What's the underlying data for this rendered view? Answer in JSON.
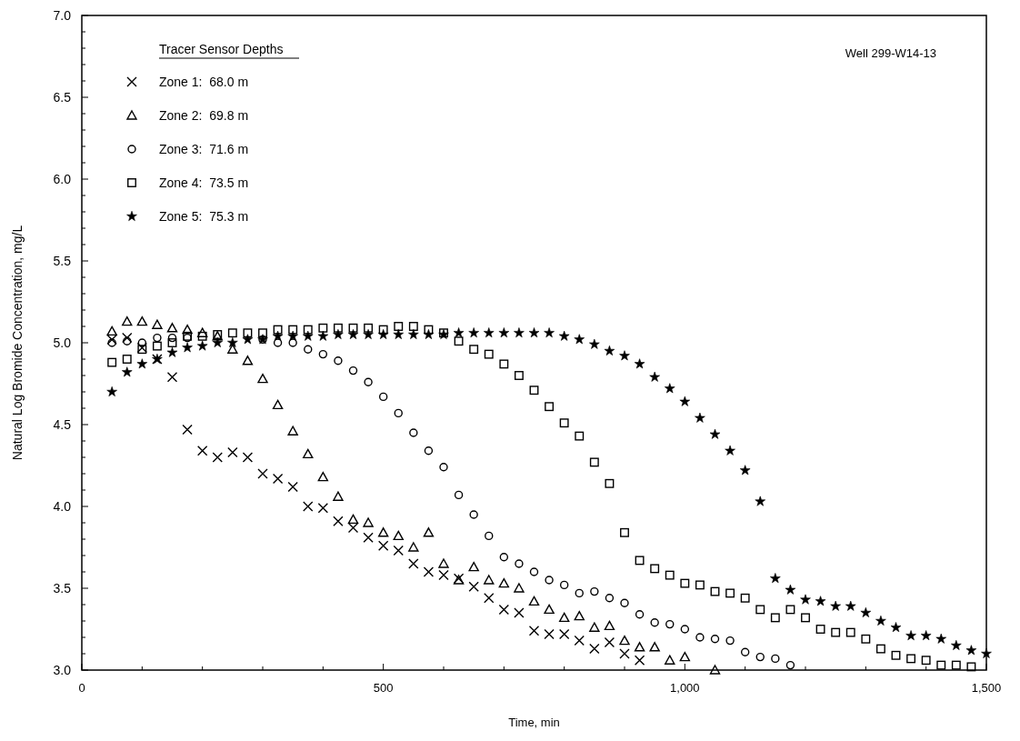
{
  "chart_data": {
    "type": "scatter",
    "xlabel": "Time, min",
    "ylabel": "Natural Log Bromide Concentration, mg/L",
    "legend_title": "Tracer Sensor Depths",
    "annotations": [
      "Well 299-W14-13"
    ],
    "legend": "top left",
    "grid": false,
    "xlim": [
      0,
      1500
    ],
    "ylim": [
      3,
      7
    ],
    "xticks": [
      0,
      {
        "value": 100,
        "label": null
      },
      {
        "value": 200,
        "label": null
      },
      {
        "value": 300,
        "label": null
      },
      {
        "value": 400,
        "label": null
      },
      500,
      {
        "value": 600,
        "label": null
      },
      {
        "value": 700,
        "label": null
      },
      {
        "value": 800,
        "label": null
      },
      {
        "value": 900,
        "label": null
      },
      {
        "value": 1000,
        "label": "1,000"
      },
      {
        "value": 1100,
        "label": null
      },
      {
        "value": 1200,
        "label": null
      },
      {
        "value": 1300,
        "label": null
      },
      {
        "value": 1400,
        "label": null
      },
      {
        "value": 1500,
        "label": "1,500"
      }
    ],
    "yticks": [
      {
        "value": 3,
        "label": "3.0"
      },
      {
        "value": 3.1,
        "label": null
      },
      {
        "value": 3.2,
        "label": null
      },
      {
        "value": 3.3,
        "label": null
      },
      {
        "value": 3.4,
        "label": null
      },
      {
        "value": 3.5,
        "label": "3.5"
      },
      {
        "value": 3.6,
        "label": null
      },
      {
        "value": 3.7,
        "label": null
      },
      {
        "value": 3.8,
        "label": null
      },
      {
        "value": 3.9,
        "label": null
      },
      {
        "value": 4,
        "label": "4.0"
      },
      {
        "value": 4.1,
        "label": null
      },
      {
        "value": 4.2,
        "label": null
      },
      {
        "value": 4.3,
        "label": null
      },
      {
        "value": 4.4,
        "label": null
      },
      {
        "value": 4.5,
        "label": "4.5"
      },
      {
        "value": 4.6,
        "label": null
      },
      {
        "value": 4.7,
        "label": null
      },
      {
        "value": 4.8,
        "label": null
      },
      {
        "value": 4.9,
        "label": null
      },
      {
        "value": 5,
        "label": "5.0"
      },
      {
        "value": 5.1,
        "label": null
      },
      {
        "value": 5.2,
        "label": null
      },
      {
        "value": 5.3,
        "label": null
      },
      {
        "value": 5.4,
        "label": null
      },
      {
        "value": 5.5,
        "label": "5.5"
      },
      {
        "value": 5.6,
        "label": null
      },
      {
        "value": 5.7,
        "label": null
      },
      {
        "value": 5.8,
        "label": null
      },
      {
        "value": 5.9,
        "label": null
      },
      {
        "value": 6,
        "label": "6.0"
      },
      {
        "value": 6.1,
        "label": null
      },
      {
        "value": 6.2,
        "label": null
      },
      {
        "value": 6.3,
        "label": null
      },
      {
        "value": 6.4,
        "label": null
      },
      {
        "value": 6.5,
        "label": "6.5"
      },
      {
        "value": 6.6,
        "label": null
      },
      {
        "value": 6.7,
        "label": null
      },
      {
        "value": 6.8,
        "label": null
      },
      {
        "value": 6.9,
        "label": null
      },
      {
        "value": 7,
        "label": "7.0"
      }
    ],
    "series": [
      {
        "name": "Zone 1:  68.0 m",
        "color": "#000000",
        "marker": "cross",
        "x": [
          50,
          75,
          100,
          125,
          150,
          175,
          200,
          225,
          250,
          275,
          300,
          325,
          350,
          375,
          400,
          425,
          450,
          475,
          500,
          525,
          550,
          575,
          600,
          625,
          650,
          675,
          700,
          725,
          750,
          775,
          800,
          825,
          850,
          875,
          900,
          925
        ],
        "values": [
          5.02,
          5.03,
          4.97,
          4.9,
          4.79,
          4.47,
          4.34,
          4.3,
          4.33,
          4.3,
          4.2,
          4.17,
          4.12,
          4.0,
          3.99,
          3.91,
          3.87,
          3.81,
          3.76,
          3.73,
          3.65,
          3.6,
          3.58,
          3.56,
          3.51,
          3.44,
          3.37,
          3.35,
          3.24,
          3.22,
          3.22,
          3.18,
          3.13,
          3.17,
          3.1,
          3.06
        ]
      },
      {
        "name": "Zone 2:  69.8 m",
        "color": "#000000",
        "marker": "triangle",
        "x": [
          50,
          75,
          100,
          125,
          150,
          175,
          200,
          225,
          250,
          275,
          300,
          325,
          350,
          375,
          400,
          425,
          450,
          475,
          500,
          525,
          550,
          575,
          600,
          625,
          650,
          675,
          700,
          725,
          750,
          775,
          800,
          825,
          850,
          875,
          900,
          925,
          950,
          975,
          1000,
          1050
        ],
        "values": [
          5.07,
          5.13,
          5.13,
          5.11,
          5.09,
          5.08,
          5.06,
          5.04,
          4.96,
          4.89,
          4.78,
          4.62,
          4.46,
          4.32,
          4.18,
          4.06,
          3.92,
          3.9,
          3.84,
          3.82,
          3.75,
          3.84,
          3.65,
          3.55,
          3.63,
          3.55,
          3.53,
          3.5,
          3.42,
          3.37,
          3.32,
          3.33,
          3.26,
          3.27,
          3.18,
          3.14,
          3.14,
          3.06,
          3.08,
          3.0
        ]
      },
      {
        "name": "Zone 3:  71.6 m",
        "color": "#000000",
        "marker": "circle",
        "x": [
          50,
          75,
          100,
          125,
          150,
          175,
          300,
          325,
          350,
          375,
          400,
          425,
          450,
          475,
          500,
          525,
          550,
          575,
          600,
          625,
          650,
          675,
          700,
          725,
          750,
          775,
          800,
          825,
          850,
          875,
          900,
          925,
          950,
          975,
          1000,
          1025,
          1050,
          1075,
          1100,
          1125,
          1150,
          1175
        ],
        "values": [
          5.0,
          5.01,
          5.0,
          5.03,
          5.03,
          5.03,
          5.02,
          5.0,
          5.0,
          4.96,
          4.93,
          4.89,
          4.83,
          4.76,
          4.67,
          4.57,
          4.45,
          4.34,
          4.24,
          4.07,
          3.95,
          3.82,
          3.69,
          3.65,
          3.6,
          3.55,
          3.52,
          3.47,
          3.48,
          3.44,
          3.41,
          3.34,
          3.29,
          3.28,
          3.25,
          3.2,
          3.19,
          3.18,
          3.11,
          3.08,
          3.07,
          3.03
        ]
      },
      {
        "name": "Zone 4:  73.5 m",
        "color": "#000000",
        "marker": "square",
        "x": [
          50,
          75,
          100,
          125,
          150,
          175,
          200,
          225,
          250,
          275,
          300,
          325,
          350,
          375,
          400,
          425,
          450,
          475,
          500,
          525,
          550,
          575,
          600,
          625,
          650,
          675,
          700,
          725,
          750,
          775,
          800,
          825,
          850,
          875,
          900,
          925,
          950,
          975,
          1000,
          1025,
          1050,
          1075,
          1100,
          1125,
          1150,
          1175,
          1200,
          1225,
          1250,
          1275,
          1300,
          1325,
          1350,
          1375,
          1400,
          1425,
          1450,
          1475
        ],
        "values": [
          4.88,
          4.9,
          4.96,
          4.98,
          5.0,
          5.04,
          5.04,
          5.05,
          5.06,
          5.06,
          5.06,
          5.08,
          5.08,
          5.08,
          5.09,
          5.09,
          5.09,
          5.09,
          5.08,
          5.1,
          5.1,
          5.08,
          5.06,
          5.01,
          4.96,
          4.93,
          4.87,
          4.8,
          4.71,
          4.61,
          4.51,
          4.43,
          4.27,
          4.14,
          3.84,
          3.67,
          3.62,
          3.58,
          3.53,
          3.52,
          3.48,
          3.47,
          3.44,
          3.37,
          3.32,
          3.37,
          3.32,
          3.25,
          3.23,
          3.23,
          3.19,
          3.13,
          3.09,
          3.07,
          3.06,
          3.03,
          3.03,
          3.02
        ]
      },
      {
        "name": "Zone 5:  75.3 m",
        "color": "#000000",
        "marker": "star",
        "x": [
          50,
          75,
          100,
          125,
          150,
          175,
          200,
          225,
          250,
          275,
          300,
          325,
          350,
          375,
          400,
          425,
          450,
          475,
          500,
          525,
          550,
          575,
          600,
          625,
          650,
          675,
          700,
          725,
          750,
          775,
          800,
          825,
          850,
          875,
          900,
          925,
          950,
          975,
          1000,
          1025,
          1050,
          1075,
          1100,
          1125,
          1150,
          1175,
          1200,
          1225,
          1250,
          1275,
          1300,
          1325,
          1350,
          1375,
          1400,
          1425,
          1450,
          1475,
          1500
        ],
        "values": [
          4.7,
          4.82,
          4.87,
          4.9,
          4.94,
          4.97,
          4.98,
          5.0,
          5.0,
          5.02,
          5.02,
          5.04,
          5.04,
          5.04,
          5.04,
          5.05,
          5.05,
          5.05,
          5.05,
          5.05,
          5.05,
          5.05,
          5.05,
          5.06,
          5.06,
          5.06,
          5.06,
          5.06,
          5.06,
          5.06,
          5.04,
          5.02,
          4.99,
          4.95,
          4.92,
          4.87,
          4.79,
          4.72,
          4.64,
          4.54,
          4.44,
          4.34,
          4.22,
          4.03,
          3.56,
          3.49,
          3.43,
          3.42,
          3.39,
          3.39,
          3.35,
          3.3,
          3.26,
          3.21,
          3.21,
          3.19,
          3.15,
          3.12,
          3.1
        ]
      }
    ]
  }
}
